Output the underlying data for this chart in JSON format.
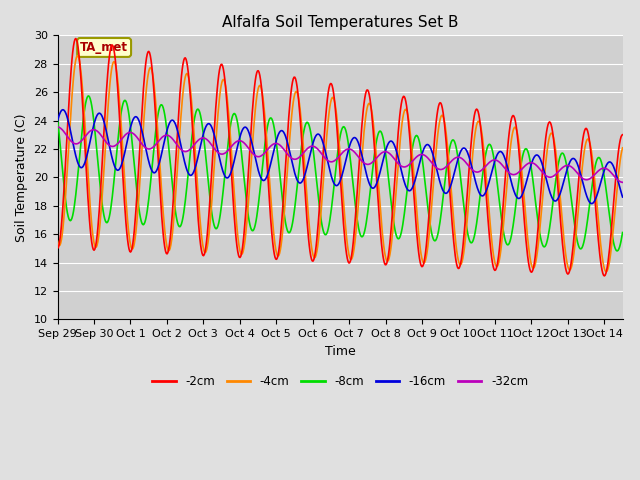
{
  "title": "Alfalfa Soil Temperatures Set B",
  "xlabel": "Time",
  "ylabel": "Soil Temperature (C)",
  "ylim": [
    10,
    30
  ],
  "fig_bg": "#e0e0e0",
  "plot_bg": "#d0d0d0",
  "grid_color": "#ffffff",
  "annotation_text": "TA_met",
  "annotation_bg": "#ffffcc",
  "annotation_border": "#999900",
  "annotation_text_color": "#aa0000",
  "series": {
    "-2cm": {
      "color": "#ff0000",
      "linewidth": 1.2
    },
    "-4cm": {
      "color": "#ff8800",
      "linewidth": 1.2
    },
    "-8cm": {
      "color": "#00dd00",
      "linewidth": 1.2
    },
    "-16cm": {
      "color": "#0000dd",
      "linewidth": 1.2
    },
    "-32cm": {
      "color": "#bb00bb",
      "linewidth": 1.2
    }
  },
  "x_tick_labels": [
    "Sep 29",
    "Sep 30",
    "Oct 1",
    "Oct 2",
    "Oct 3",
    "Oct 4",
    "Oct 5",
    "Oct 6",
    "Oct 7",
    "Oct 8",
    "Oct 9",
    "Oct 10",
    "Oct 11",
    "Oct 12",
    "Oct 13",
    "Oct 14"
  ],
  "num_days": 15.5,
  "legend_labels": [
    "-2cm",
    "-4cm",
    "-8cm",
    "-16cm",
    "-32cm"
  ]
}
